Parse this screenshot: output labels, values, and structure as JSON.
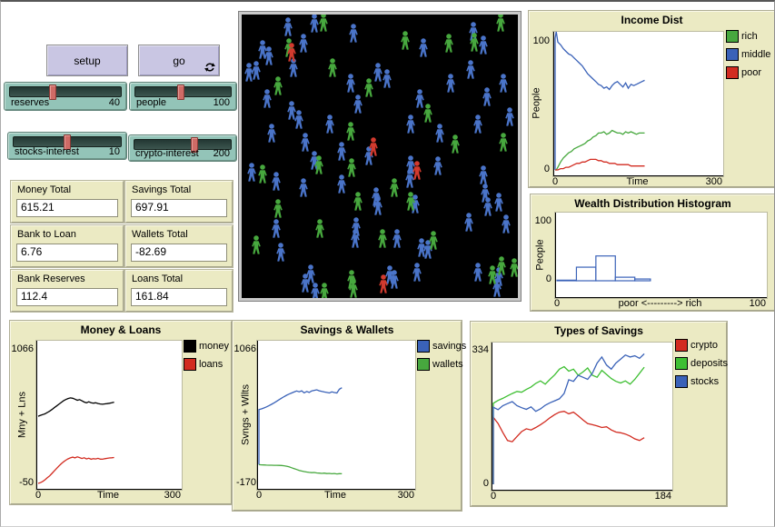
{
  "buttons": {
    "setup": {
      "label": "setup"
    },
    "go": {
      "label": "go"
    }
  },
  "sliders": [
    {
      "label": "reserves",
      "value": "40",
      "frac": 0.38
    },
    {
      "label": "people",
      "value": "100",
      "frac": 0.47
    },
    {
      "label": "stocks-interest",
      "value": "10",
      "frac": 0.5
    },
    {
      "label": "crypto-interest",
      "value": "200",
      "frac": 0.63
    }
  ],
  "monitors": [
    {
      "label": "Money Total",
      "value": "615.21"
    },
    {
      "label": "Savings Total",
      "value": "697.91"
    },
    {
      "label": "Bank to Loan",
      "value": "6.76"
    },
    {
      "label": "Wallets Total",
      "value": "-82.69"
    },
    {
      "label": "Bank Reserves",
      "value": "112.4"
    },
    {
      "label": "Loans Total",
      "value": "161.84"
    }
  ],
  "world": {
    "background": "#000000",
    "colors": {
      "b": "#4a74c9",
      "g": "#47a83e",
      "r": "#d23a2e"
    },
    "people": [
      [
        51,
        13,
        "b"
      ],
      [
        80,
        9,
        "b"
      ],
      [
        123,
        20,
        "b"
      ],
      [
        255,
        18,
        "b"
      ],
      [
        23,
        38,
        "b"
      ],
      [
        30,
        45,
        "b"
      ],
      [
        68,
        31,
        "b"
      ],
      [
        200,
        36,
        "b"
      ],
      [
        266,
        33,
        "b"
      ],
      [
        8,
        63,
        "b"
      ],
      [
        16,
        61,
        "b"
      ],
      [
        57,
        58,
        "b"
      ],
      [
        28,
        92,
        "b"
      ],
      [
        55,
        105,
        "b"
      ],
      [
        63,
        115,
        "b"
      ],
      [
        33,
        130,
        "b"
      ],
      [
        70,
        140,
        "b"
      ],
      [
        97,
        120,
        "b"
      ],
      [
        128,
        98,
        "b"
      ],
      [
        120,
        75,
        "b"
      ],
      [
        150,
        63,
        "b"
      ],
      [
        160,
        70,
        "b"
      ],
      [
        196,
        92,
        "b"
      ],
      [
        230,
        75,
        "b"
      ],
      [
        252,
        60,
        "b"
      ],
      [
        270,
        90,
        "b"
      ],
      [
        288,
        75,
        "b"
      ],
      [
        295,
        112,
        "b"
      ],
      [
        260,
        120,
        "b"
      ],
      [
        218,
        130,
        "b"
      ],
      [
        186,
        120,
        "b"
      ],
      [
        140,
        155,
        "b"
      ],
      [
        110,
        150,
        "b"
      ],
      [
        80,
        160,
        "b"
      ],
      [
        11,
        173,
        "b"
      ],
      [
        38,
        183,
        "b"
      ],
      [
        68,
        190,
        "b"
      ],
      [
        110,
        186,
        "b"
      ],
      [
        148,
        200,
        "b"
      ],
      [
        150,
        210,
        "b"
      ],
      [
        186,
        165,
        "b"
      ],
      [
        185,
        180,
        "b"
      ],
      [
        216,
        166,
        "b"
      ],
      [
        266,
        176,
        "b"
      ],
      [
        268,
        196,
        "b"
      ],
      [
        283,
        206,
        "b"
      ],
      [
        271,
        211,
        "b"
      ],
      [
        191,
        208,
        "b"
      ],
      [
        38,
        235,
        "b"
      ],
      [
        126,
        233,
        "b"
      ],
      [
        125,
        246,
        "b"
      ],
      [
        171,
        246,
        "b"
      ],
      [
        198,
        256,
        "b"
      ],
      [
        205,
        258,
        "b"
      ],
      [
        250,
        228,
        "b"
      ],
      [
        291,
        230,
        "b"
      ],
      [
        43,
        261,
        "b"
      ],
      [
        70,
        295,
        "b"
      ],
      [
        76,
        285,
        "b"
      ],
      [
        81,
        305,
        "b"
      ],
      [
        168,
        291,
        "b"
      ],
      [
        163,
        286,
        "b"
      ],
      [
        193,
        283,
        "b"
      ],
      [
        260,
        283,
        "b"
      ],
      [
        283,
        288,
        "b"
      ],
      [
        281,
        300,
        "b"
      ],
      [
        90,
        8,
        "g"
      ],
      [
        52,
        36,
        "g"
      ],
      [
        228,
        31,
        "g"
      ],
      [
        285,
        8,
        "g"
      ],
      [
        100,
        58,
        "g"
      ],
      [
        40,
        78,
        "g"
      ],
      [
        140,
        80,
        "g"
      ],
      [
        120,
        128,
        "g"
      ],
      [
        205,
        108,
        "g"
      ],
      [
        235,
        142,
        "g"
      ],
      [
        288,
        140,
        "g"
      ],
      [
        256,
        30,
        "g"
      ],
      [
        180,
        28,
        "g"
      ],
      [
        23,
        175,
        "g"
      ],
      [
        85,
        165,
        "g"
      ],
      [
        121,
        168,
        "g"
      ],
      [
        128,
        205,
        "g"
      ],
      [
        168,
        190,
        "g"
      ],
      [
        186,
        205,
        "g"
      ],
      [
        40,
        213,
        "g"
      ],
      [
        86,
        235,
        "g"
      ],
      [
        155,
        246,
        "g"
      ],
      [
        211,
        248,
        "g"
      ],
      [
        16,
        253,
        "g"
      ],
      [
        91,
        305,
        "g"
      ],
      [
        121,
        291,
        "g"
      ],
      [
        123,
        301,
        "g"
      ],
      [
        276,
        286,
        "g"
      ],
      [
        286,
        276,
        "g"
      ],
      [
        300,
        278,
        "g"
      ],
      [
        55,
        41,
        "r"
      ],
      [
        145,
        145,
        "r"
      ],
      [
        193,
        171,
        "r"
      ],
      [
        156,
        296,
        "r"
      ]
    ]
  },
  "chart_data": [
    {
      "type": "line",
      "title": "Income Dist",
      "ylabel": "People",
      "xlabel": "Time",
      "y_max_label": "100",
      "y_min_label": "0",
      "x_min_label": "0",
      "x_max_label": "300",
      "xlim": [
        0,
        300
      ],
      "ylim": [
        0,
        100
      ],
      "x": [
        0,
        0,
        2,
        5,
        10,
        15,
        20,
        25,
        30,
        35,
        40,
        45,
        50,
        55,
        60,
        65,
        70,
        75,
        80,
        85,
        90,
        95,
        100,
        105,
        110,
        115,
        120,
        125,
        130,
        135,
        140,
        145,
        150,
        155,
        160,
        165
      ],
      "series": [
        {
          "name": "rich",
          "color": "#47a83e",
          "values": [
            0,
            0,
            0,
            2,
            6,
            9,
            11,
            13,
            14,
            16,
            17,
            18,
            19,
            20,
            22,
            23,
            25,
            26,
            28,
            28,
            29,
            27,
            28,
            30,
            29,
            28,
            28,
            27,
            29,
            28,
            29,
            28,
            27,
            28,
            28,
            28
          ]
        },
        {
          "name": "middle",
          "color": "#3a62b8",
          "values": [
            0,
            100,
            105,
            97,
            95,
            92,
            90,
            88,
            87,
            85,
            83,
            81,
            79,
            76,
            73,
            71,
            69,
            67,
            65,
            64,
            62,
            63,
            61,
            64,
            66,
            67,
            65,
            63,
            66,
            62,
            65,
            64,
            65,
            66,
            67,
            68
          ]
        },
        {
          "name": "poor",
          "color": "#d22b20",
          "values": [
            0,
            0,
            0,
            0,
            1,
            1,
            2,
            2,
            3,
            4,
            5,
            5,
            6,
            6,
            7,
            8,
            8,
            8,
            7,
            7,
            6,
            6,
            5,
            5,
            5,
            4,
            4,
            4,
            4,
            4,
            3,
            3,
            3,
            3,
            3,
            3
          ]
        }
      ]
    },
    {
      "type": "histogram",
      "title": "Wealth Distribution Histogram",
      "ylabel": "People",
      "xlabel": "poor <---------> rich",
      "y_max_label": "100",
      "y_min_label": "0",
      "x_min_label": "0",
      "x_max_label": "100",
      "xlim": [
        0,
        105
      ],
      "ylim": [
        0,
        100
      ],
      "color": "#3a62b8",
      "bins": [
        {
          "x0": 0,
          "x1": 10,
          "v": 1
        },
        {
          "x0": 10,
          "x1": 20,
          "v": 23
        },
        {
          "x0": 20,
          "x1": 30,
          "v": 42
        },
        {
          "x0": 30,
          "x1": 40,
          "v": 6
        },
        {
          "x0": 40,
          "x1": 48,
          "v": 3
        }
      ]
    },
    {
      "type": "line",
      "title": "Money & Loans",
      "ylabel": "Mny + Lns",
      "xlabel": "Time",
      "y_max_label": "1066",
      "y_min_label": "-50",
      "x_min_label": "0",
      "x_max_label": "300",
      "xlim": [
        0,
        300
      ],
      "ylim": [
        -50,
        1066
      ],
      "x": [
        0,
        5,
        10,
        15,
        20,
        25,
        30,
        35,
        40,
        45,
        50,
        55,
        60,
        65,
        70,
        75,
        80,
        85,
        90,
        95,
        100,
        105,
        110,
        115,
        120,
        125,
        130,
        135,
        140,
        145,
        150,
        155,
        160,
        165
      ],
      "series": [
        {
          "name": "money",
          "color": "#000000",
          "values": [
            500,
            507,
            513,
            520,
            530,
            542,
            555,
            570,
            584,
            598,
            612,
            626,
            637,
            645,
            650,
            647,
            640,
            631,
            636,
            626,
            616,
            610,
            618,
            611,
            607,
            610,
            604,
            600,
            598,
            601,
            603,
            606,
            610,
            615
          ]
        },
        {
          "name": "loans",
          "color": "#d22b20",
          "values": [
            -50,
            -44,
            -34,
            -20,
            -4,
            12,
            32,
            52,
            72,
            92,
            110,
            126,
            140,
            151,
            159,
            165,
            159,
            167,
            161,
            154,
            160,
            150,
            156,
            148,
            152,
            150,
            155,
            149,
            148,
            152,
            155,
            158,
            160,
            162
          ]
        }
      ]
    },
    {
      "type": "line",
      "title": "Savings & Wallets",
      "ylabel": "Svngs + Wllts",
      "xlabel": "Time",
      "y_max_label": "1066",
      "y_min_label": "-170",
      "x_min_label": "0",
      "x_max_label": "300",
      "xlim": [
        0,
        300
      ],
      "ylim": [
        -170,
        1066
      ],
      "x": [
        0,
        0,
        5,
        10,
        15,
        20,
        25,
        30,
        35,
        40,
        45,
        50,
        55,
        60,
        65,
        70,
        75,
        80,
        85,
        90,
        95,
        100,
        105,
        110,
        115,
        120,
        125,
        130,
        135,
        140,
        145,
        150,
        155,
        160,
        165
      ],
      "series": [
        {
          "name": "savings",
          "color": "#3a62b8",
          "values": [
            0,
            500,
            506,
            514,
            524,
            535,
            547,
            560,
            574,
            589,
            603,
            617,
            629,
            640,
            650,
            659,
            668,
            661,
            670,
            651,
            664,
            655,
            669,
            674,
            679,
            670,
            664,
            659,
            655,
            650,
            660,
            654,
            650,
            684,
            698
          ]
        },
        {
          "name": "wallets",
          "color": "#47a83e",
          "values": [
            0,
            0,
            -2,
            -3,
            -4,
            -5,
            -5,
            -6,
            -6,
            -7,
            -8,
            -10,
            -14,
            -20,
            -28,
            -36,
            -44,
            -52,
            -58,
            -63,
            -67,
            -70,
            -73,
            -71,
            -75,
            -77,
            -79,
            -77,
            -81,
            -79,
            -83,
            -80,
            -84,
            -82,
            -83
          ]
        }
      ]
    },
    {
      "type": "line",
      "title": "Types of Savings",
      "ylabel": "",
      "xlabel": "",
      "y_max_label": "334",
      "y_min_label": "0",
      "x_min_label": "0",
      "x_max_label": "184",
      "xlim": [
        0,
        184
      ],
      "ylim": [
        0,
        334
      ],
      "x": [
        0,
        0,
        5,
        10,
        15,
        20,
        25,
        30,
        35,
        40,
        45,
        50,
        55,
        60,
        65,
        70,
        75,
        80,
        85,
        90,
        95,
        100,
        105,
        110,
        115,
        120,
        125,
        130,
        135,
        140,
        145,
        150,
        155,
        160
      ],
      "series": [
        {
          "name": "crypto",
          "color": "#d22b20",
          "values": [
            0,
            165,
            150,
            128,
            108,
            105,
            118,
            130,
            137,
            134,
            140,
            147,
            155,
            164,
            172,
            178,
            180,
            174,
            178,
            169,
            159,
            150,
            147,
            144,
            140,
            142,
            134,
            129,
            127,
            124,
            119,
            112,
            108,
            115
          ]
        },
        {
          "name": "deposits",
          "color": "#3fbf33",
          "values": [
            0,
            200,
            207,
            212,
            218,
            224,
            229,
            227,
            234,
            240,
            249,
            255,
            247,
            259,
            270,
            284,
            290,
            279,
            284,
            269,
            277,
            287,
            269,
            264,
            281,
            271,
            261,
            254,
            250,
            255,
            247,
            259,
            274,
            289
          ]
        },
        {
          "name": "stocks",
          "color": "#3a62b8",
          "values": [
            0,
            190,
            184,
            194,
            199,
            204,
            194,
            189,
            185,
            191,
            180,
            186,
            195,
            201,
            206,
            211,
            224,
            258,
            254,
            269,
            264,
            259,
            274,
            299,
            314,
            294,
            284,
            299,
            309,
            319,
            314,
            317,
            311,
            322
          ]
        }
      ]
    }
  ]
}
